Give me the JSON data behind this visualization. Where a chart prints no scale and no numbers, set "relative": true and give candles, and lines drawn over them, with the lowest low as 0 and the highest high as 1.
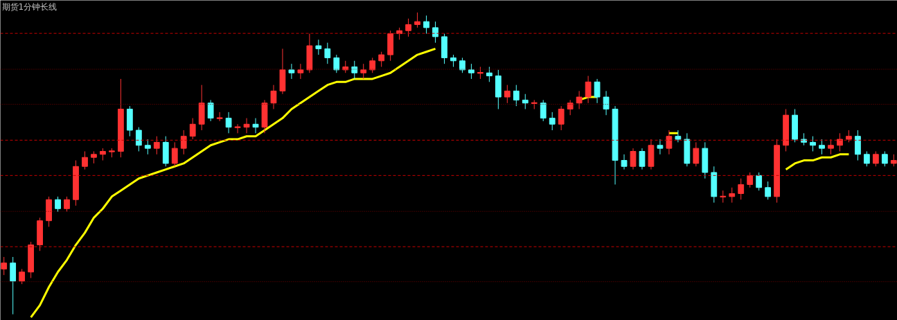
{
  "chart_data": {
    "type": "candlestick",
    "title": "期货1分钟长线",
    "relative": true,
    "categories": [
      null,
      null,
      null,
      null,
      null,
      null,
      null,
      null,
      null,
      null,
      null,
      null,
      null,
      null,
      null,
      null,
      null,
      null,
      null,
      null,
      null,
      null,
      null,
      null,
      null,
      null,
      null,
      null,
      null,
      null,
      null,
      null,
      null,
      null,
      null,
      null,
      null,
      null,
      null,
      null,
      null,
      null,
      null,
      null,
      null,
      null,
      null,
      null,
      null,
      null,
      null,
      null,
      null,
      null,
      null,
      null,
      null,
      null,
      null,
      null,
      null,
      null,
      null,
      null,
      null,
      null,
      null,
      null,
      null,
      null,
      null,
      null,
      null,
      null,
      null,
      null,
      null,
      null,
      null,
      null,
      null,
      null,
      null,
      null,
      null,
      null,
      null,
      null,
      null,
      null,
      null,
      null,
      null,
      null,
      null,
      null,
      null,
      null,
      null,
      null
    ],
    "colors": [
      "#ff3232",
      "#54ffff",
      "#ff3232",
      "#ff3232",
      "#ff3232",
      "#ff3232",
      "#54ffff",
      "#ff3232",
      "#ff3232",
      "#ff3232",
      "#ff3232",
      "#ff3232",
      "#ff3232",
      "#ff3232",
      "#54ffff",
      "#54ffff",
      "#54ffff",
      "#ff3232",
      "#54ffff",
      "#ff3232",
      "#ff3232",
      "#ff3232",
      "#ff3232",
      "#54ffff",
      "#ff3232",
      "#54ffff",
      "#ff3232",
      "#ff3232",
      "#54ffff",
      "#ff3232",
      "#ff3232",
      "#ff3232",
      "#54ffff",
      "#ff3232",
      "#ff3232",
      "#54ffff",
      "#54ffff",
      "#54ffff",
      "#ff3232",
      "#54ffff",
      "#ff3232",
      "#ff3232",
      "#ff3232",
      "#ff3232",
      "#ff3232",
      "#ff3232",
      "#ff3232",
      "#54ffff",
      "#54ffff",
      "#54ffff",
      "#54ffff",
      "#54ffff",
      "#54ffff",
      "#ff3232",
      "#54ffff",
      "#54ffff",
      "#ff3232",
      "#54ffff",
      "#54ffff",
      "#ff3232",
      "#54ffff",
      "#54ffff",
      "#ff3232",
      "#ff3232",
      "#ff3232",
      "#ff3232",
      "#54ffff",
      "#54ffff",
      "#54ffff",
      "#54ffff",
      "#ff3232",
      "#54ffff",
      "#ff3232",
      "#54ffff",
      "#ff3232",
      "#54ffff",
      "#54ffff",
      "#ff3232",
      "#54ffff",
      "#54ffff",
      "#ff3232",
      "#ff3232",
      "#ff3232",
      "#ff3232",
      "#54ffff",
      "#54ffff",
      "#ff3232",
      "#ff3232",
      "#54ffff",
      "#54ffff",
      "#54ffff",
      "#54ffff",
      "#ff3232",
      "#ff3232",
      "#ff3232",
      "#54ffff",
      "#54ffff",
      "#ff3232",
      "#54ffff",
      "#ff3232"
    ],
    "ohlc": [
      [
        0.15,
        0.19,
        0.13,
        0.17
      ],
      [
        0.17,
        0.19,
        0,
        0.11
      ],
      [
        0.11,
        0.15,
        0.1,
        0.14
      ],
      [
        0.14,
        0.24,
        0.12,
        0.23
      ],
      [
        0.23,
        0.32,
        0.21,
        0.31
      ],
      [
        0.31,
        0.39,
        0.29,
        0.38
      ],
      [
        0.38,
        0.39,
        0.34,
        0.35
      ],
      [
        0.35,
        0.39,
        0.34,
        0.38
      ],
      [
        0.38,
        0.51,
        0.36,
        0.49
      ],
      [
        0.49,
        0.54,
        0.48,
        0.52
      ],
      [
        0.52,
        0.54,
        0.5,
        0.53
      ],
      [
        0.53,
        0.55,
        0.51,
        0.54
      ],
      [
        0.54,
        0.55,
        0.52,
        0.54
      ],
      [
        0.54,
        0.78,
        0.52,
        0.68
      ],
      [
        0.68,
        0.69,
        0.59,
        0.61
      ],
      [
        0.61,
        0.62,
        0.54,
        0.56
      ],
      [
        0.56,
        0.58,
        0.53,
        0.55
      ],
      [
        0.55,
        0.59,
        0.53,
        0.57
      ],
      [
        0.57,
        0.59,
        0.49,
        0.5
      ],
      [
        0.5,
        0.57,
        0.49,
        0.55
      ],
      [
        0.55,
        0.61,
        0.53,
        0.59
      ],
      [
        0.59,
        0.65,
        0.58,
        0.63
      ],
      [
        0.63,
        0.76,
        0.61,
        0.7
      ],
      [
        0.7,
        0.71,
        0.64,
        0.65
      ],
      [
        0.65,
        0.67,
        0.64,
        0.65
      ],
      [
        0.65,
        0.67,
        0.6,
        0.62
      ],
      [
        0.62,
        0.63,
        0.6,
        0.62
      ],
      [
        0.62,
        0.65,
        0.6,
        0.63
      ],
      [
        0.63,
        0.65,
        0.6,
        0.62
      ],
      [
        0.62,
        0.71,
        0.6,
        0.7
      ],
      [
        0.7,
        0.76,
        0.68,
        0.74
      ],
      [
        0.74,
        0.88,
        0.73,
        0.81
      ],
      [
        0.81,
        0.83,
        0.78,
        0.8
      ],
      [
        0.8,
        0.83,
        0.78,
        0.81
      ],
      [
        0.81,
        0.93,
        0.8,
        0.89
      ],
      [
        0.89,
        0.91,
        0.86,
        0.88
      ],
      [
        0.88,
        0.9,
        0.83,
        0.85
      ],
      [
        0.85,
        0.86,
        0.8,
        0.81
      ],
      [
        0.81,
        0.84,
        0.8,
        0.82
      ],
      [
        0.82,
        0.84,
        0.78,
        0.8
      ],
      [
        0.8,
        0.83,
        0.78,
        0.81
      ],
      [
        0.81,
        0.85,
        0.8,
        0.84
      ],
      [
        0.84,
        0.87,
        0.82,
        0.86
      ],
      [
        0.86,
        0.94,
        0.84,
        0.93
      ],
      [
        0.93,
        0.95,
        0.91,
        0.94
      ],
      [
        0.94,
        0.98,
        0.92,
        0.96
      ],
      [
        0.96,
        1,
        0.95,
        0.97
      ],
      [
        0.97,
        0.99,
        0.93,
        0.95
      ],
      [
        0.95,
        0.97,
        0.9,
        0.92
      ],
      [
        0.92,
        0.93,
        0.83,
        0.85
      ],
      [
        0.85,
        0.86,
        0.82,
        0.84
      ],
      [
        0.84,
        0.85,
        0.8,
        0.81
      ],
      [
        0.81,
        0.83,
        0.78,
        0.8
      ],
      [
        0.8,
        0.82,
        0.78,
        0.8
      ],
      [
        0.8,
        0.82,
        0.77,
        0.79
      ],
      [
        0.79,
        0.81,
        0.68,
        0.72
      ],
      [
        0.72,
        0.76,
        0.7,
        0.74
      ],
      [
        0.74,
        0.76,
        0.69,
        0.71
      ],
      [
        0.71,
        0.73,
        0.68,
        0.7
      ],
      [
        0.7,
        0.71,
        0.68,
        0.7
      ],
      [
        0.7,
        0.71,
        0.64,
        0.65
      ],
      [
        0.65,
        0.67,
        0.61,
        0.63
      ],
      [
        0.63,
        0.69,
        0.61,
        0.68
      ],
      [
        0.68,
        0.71,
        0.66,
        0.7
      ],
      [
        0.7,
        0.74,
        0.68,
        0.72
      ],
      [
        0.72,
        0.79,
        0.7,
        0.77
      ],
      [
        0.77,
        0.78,
        0.7,
        0.72
      ],
      [
        0.72,
        0.74,
        0.66,
        0.68
      ],
      [
        0.68,
        0.69,
        0.43,
        0.51
      ],
      [
        0.51,
        0.53,
        0.48,
        0.49
      ],
      [
        0.49,
        0.55,
        0.48,
        0.54
      ],
      [
        0.54,
        0.55,
        0.48,
        0.49
      ],
      [
        0.49,
        0.58,
        0.48,
        0.56
      ],
      [
        0.56,
        0.58,
        0.53,
        0.55
      ],
      [
        0.55,
        0.61,
        0.53,
        0.59
      ],
      [
        0.59,
        0.61,
        0.57,
        0.58
      ],
      [
        0.58,
        0.6,
        0.49,
        0.5
      ],
      [
        0.5,
        0.57,
        0.49,
        0.55
      ],
      [
        0.55,
        0.57,
        0.45,
        0.47
      ],
      [
        0.47,
        0.49,
        0.37,
        0.39
      ],
      [
        0.39,
        0.41,
        0.37,
        0.39
      ],
      [
        0.39,
        0.42,
        0.37,
        0.4
      ],
      [
        0.4,
        0.45,
        0.38,
        0.43
      ],
      [
        0.43,
        0.47,
        0.42,
        0.46
      ],
      [
        0.46,
        0.47,
        0.41,
        0.42
      ],
      [
        0.42,
        0.44,
        0.38,
        0.39
      ],
      [
        0.39,
        0.58,
        0.37,
        0.56
      ],
      [
        0.56,
        0.68,
        0.54,
        0.66
      ],
      [
        0.66,
        0.68,
        0.57,
        0.58
      ],
      [
        0.58,
        0.6,
        0.56,
        0.57
      ],
      [
        0.57,
        0.59,
        0.54,
        0.56
      ],
      [
        0.56,
        0.58,
        0.53,
        0.55
      ],
      [
        0.55,
        0.58,
        0.53,
        0.56
      ],
      [
        0.56,
        0.6,
        0.54,
        0.58
      ],
      [
        0.58,
        0.61,
        0.57,
        0.59
      ],
      [
        0.59,
        0.61,
        0.51,
        0.53
      ],
      [
        0.53,
        0.54,
        0.49,
        0.5
      ],
      [
        0.5,
        0.54,
        0.49,
        0.53
      ],
      [
        0.53,
        0.54,
        0.49,
        0.5
      ],
      [
        0.5,
        0.53,
        0.49,
        0.51
      ]
    ],
    "series": [
      {
        "type": "line",
        "color": "#ffff00",
        "values": [
          null,
          null,
          null,
          -0.01,
          0.03,
          0.09,
          0.14,
          0.18,
          0.23,
          0.27,
          0.32,
          0.35,
          0.39,
          0.41,
          0.43,
          0.45,
          0.46,
          0.47,
          0.48,
          0.49,
          0.5,
          0.52,
          0.54,
          0.56,
          0.57,
          0.58,
          0.58,
          0.59,
          0.59,
          0.61,
          0.63,
          0.65,
          0.68,
          0.7,
          0.72,
          0.74,
          0.76,
          0.77,
          0.77,
          0.78,
          0.78,
          0.78,
          0.79,
          0.8,
          0.82,
          0.84,
          0.86,
          0.87,
          0.88,
          null,
          null,
          null,
          null,
          null,
          null,
          null,
          null,
          null,
          null,
          null,
          null,
          null,
          null,
          null,
          0.71,
          0.72,
          0.72,
          null,
          null,
          null,
          null,
          null,
          null,
          null,
          0.6,
          0.6,
          null,
          null,
          null,
          null,
          null,
          null,
          null,
          null,
          null,
          null,
          null,
          0.48,
          0.5,
          0.51,
          0.51,
          0.52,
          0.52,
          0.53,
          0.53,
          null,
          null,
          null,
          null,
          null
        ]
      }
    ],
    "ref_lines": [
      {
        "axis": "y",
        "value": 0.931,
        "color": "#c80000",
        "line_style": "dashed"
      },
      {
        "axis": "y",
        "value": 0.812,
        "color": "#780000",
        "line_style": "dotted"
      },
      {
        "axis": "y",
        "value": 0.696,
        "color": "#780000",
        "line_style": "dotted"
      },
      {
        "axis": "y",
        "value": 0.577,
        "color": "#c80000",
        "line_style": "dashed"
      },
      {
        "axis": "y",
        "value": 0.46,
        "color": "#c80000",
        "line_style": "dashed"
      },
      {
        "axis": "y",
        "value": 0.341,
        "color": "#780000",
        "line_style": "dotted"
      },
      {
        "axis": "y",
        "value": 0.224,
        "color": "#c80000",
        "line_style": "dashed"
      },
      {
        "axis": "y",
        "value": 0.108,
        "color": "#780000",
        "line_style": "dotted"
      }
    ]
  }
}
